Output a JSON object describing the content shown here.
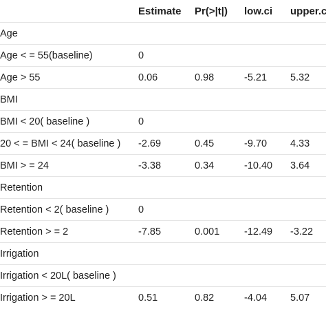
{
  "columns": [
    "",
    "Estimate",
    "Pr(>|t|)",
    "low.ci",
    "upper.ci"
  ],
  "rows": [
    [
      "Age",
      "",
      "",
      "",
      ""
    ],
    [
      "Age < = 55(baseline)",
      "0",
      "",
      "",
      ""
    ],
    [
      "Age > 55",
      "0.06",
      "0.98",
      "-5.21",
      "5.32"
    ],
    [
      "BMI",
      "",
      "",
      "",
      ""
    ],
    [
      "BMI < 20( baseline )",
      "0",
      "",
      "",
      ""
    ],
    [
      "20 < = BMI < 24( baseline )",
      "-2.69",
      "0.45",
      "-9.70",
      "4.33"
    ],
    [
      "BMI > = 24",
      "-3.38",
      "0.34",
      "-10.40",
      "3.64"
    ],
    [
      "Retention",
      "",
      "",
      "",
      ""
    ],
    [
      "Retention < 2( baseline )",
      "0",
      "",
      "",
      ""
    ],
    [
      "Retention > = 2",
      "-7.85",
      "0.001",
      "-12.49",
      "-3.22"
    ],
    [
      "Irrigation",
      "",
      "",
      "",
      ""
    ],
    [
      "Irrigation < 20L( baseline )",
      "",
      "",
      "",
      ""
    ],
    [
      "Irrigation > = 20L",
      "0.51",
      "0.82",
      "-4.04",
      "5.07"
    ]
  ]
}
